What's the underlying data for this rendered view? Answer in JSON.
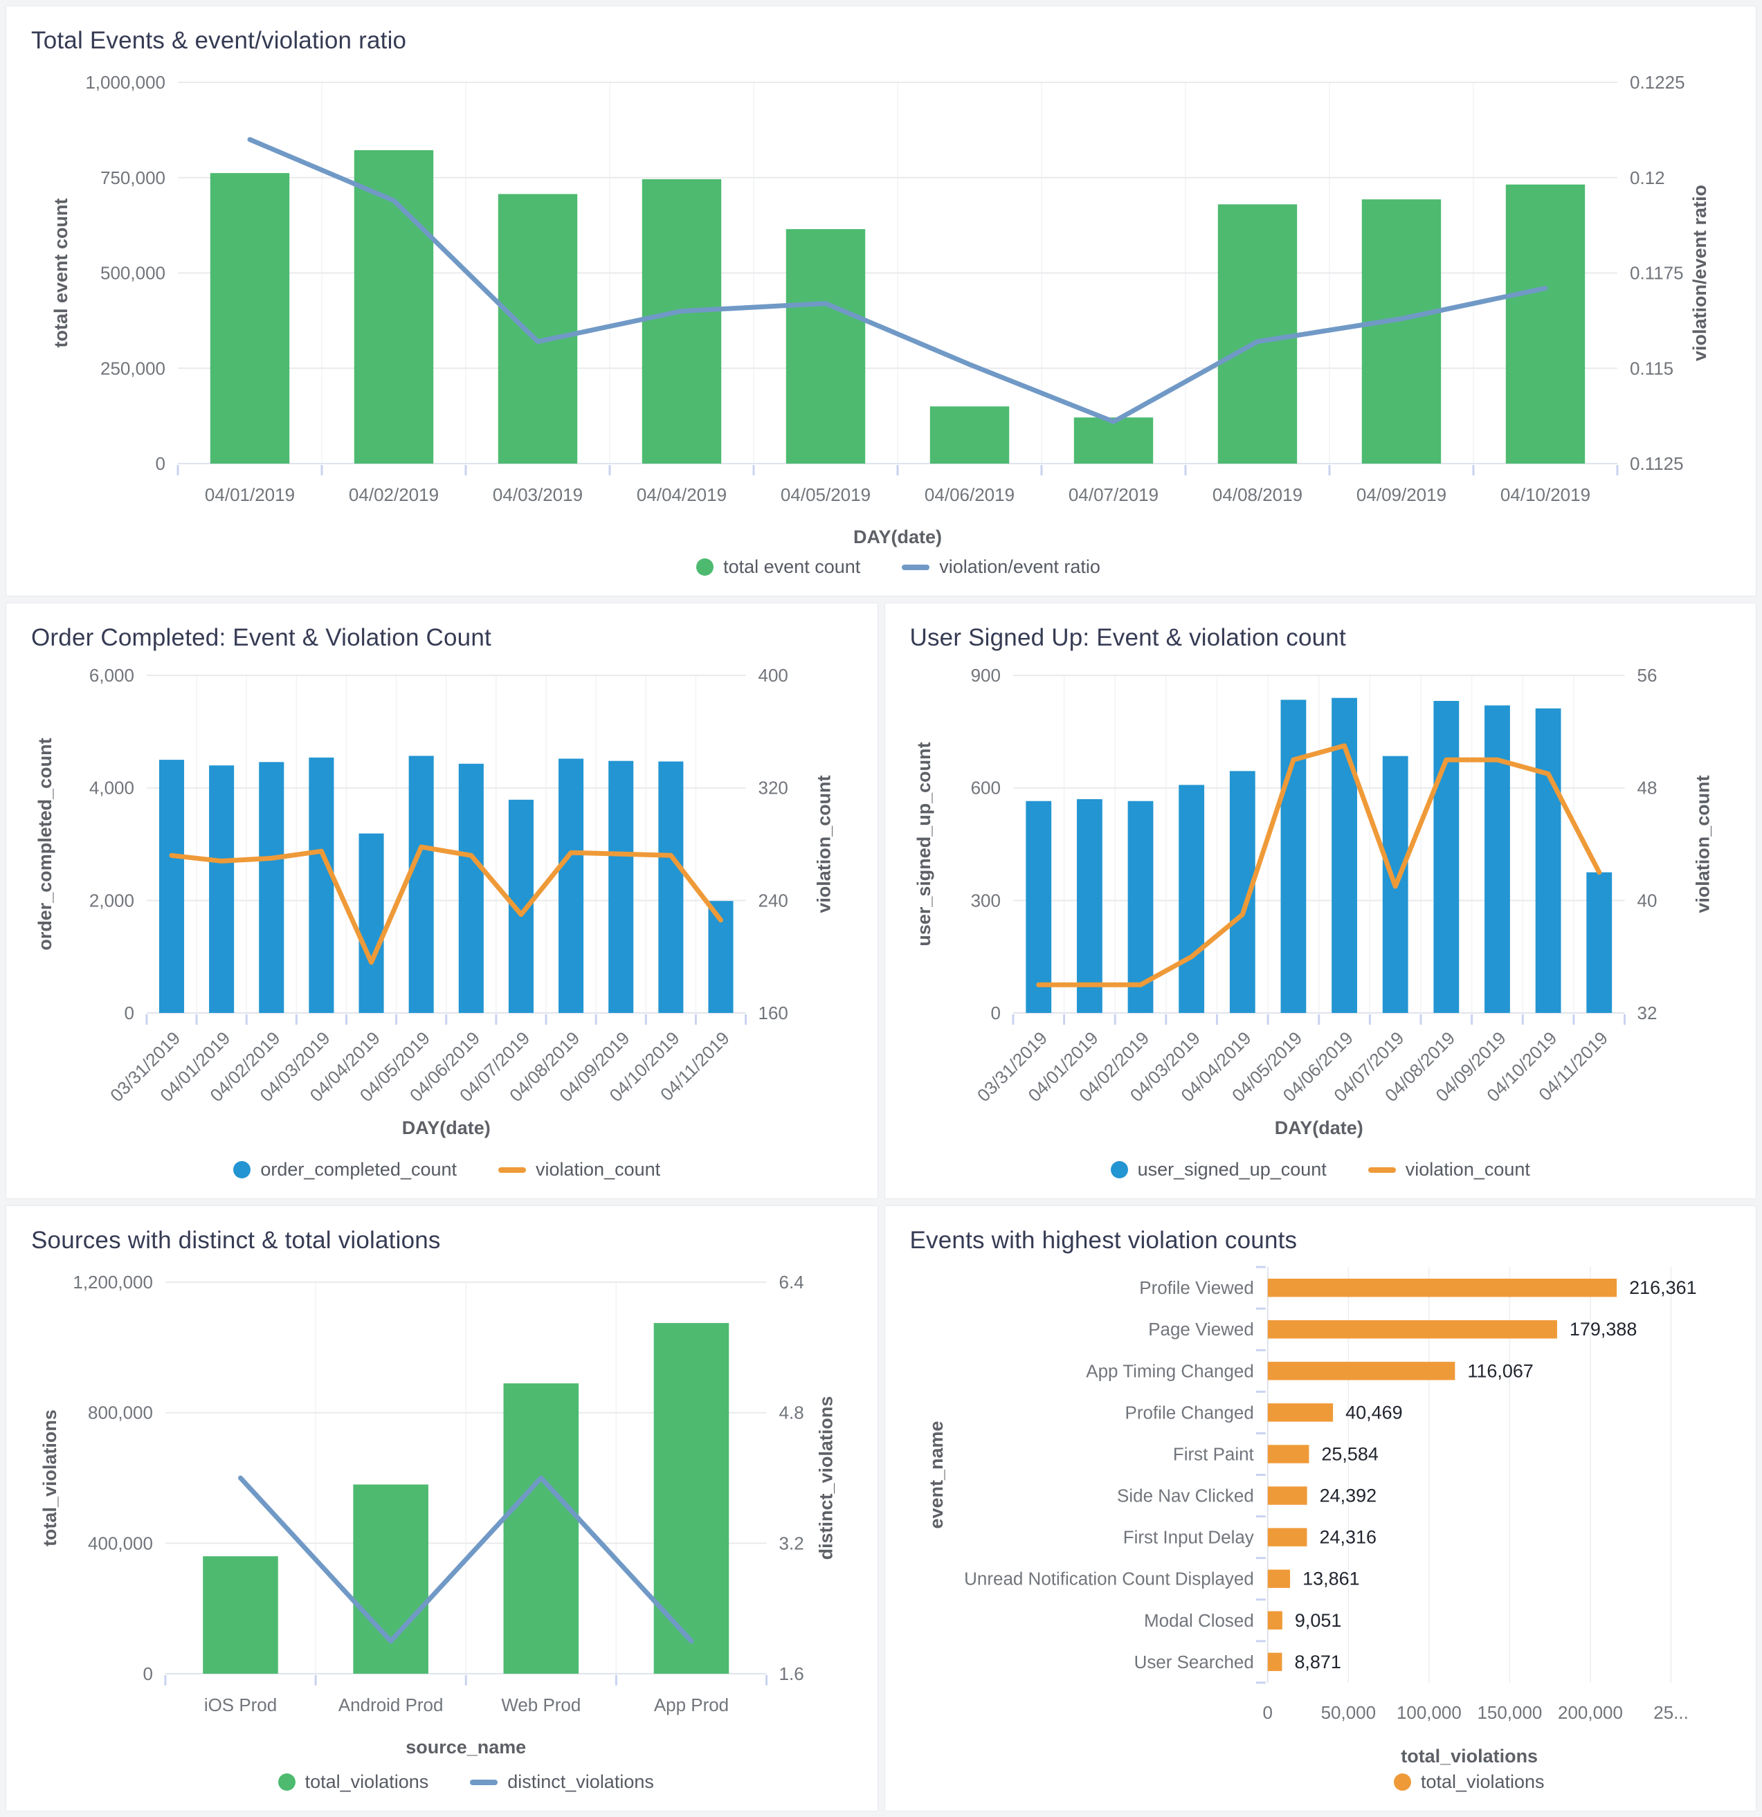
{
  "chart_data": [
    {
      "id": "total-events",
      "type": "combo",
      "title": "Total Events & event/violation ratio",
      "categories": [
        "04/01/2019",
        "04/02/2019",
        "04/03/2019",
        "04/04/2019",
        "04/05/2019",
        "04/06/2019",
        "04/07/2019",
        "04/08/2019",
        "04/09/2019",
        "04/10/2019"
      ],
      "x_axis": {
        "label": "DAY(date)"
      },
      "left_axis": {
        "label": "total event count",
        "min": 0,
        "max": 1000000,
        "ticks": [
          "1,000,000",
          "750,000",
          "500,000",
          "250,000",
          "0"
        ]
      },
      "right_axis": {
        "label": "violation/event ratio",
        "min": 0.1125,
        "max": 0.1225,
        "ticks": [
          "0.1225",
          "0.12",
          "0.1175",
          "0.115",
          "0.1125"
        ]
      },
      "bar_series": {
        "name": "total event count",
        "color": "#4dba70",
        "values": [
          762000,
          822000,
          707000,
          746000,
          615000,
          150000,
          121000,
          680000,
          693000,
          732000
        ]
      },
      "line_series": {
        "name": "violation/event ratio",
        "color": "#7099c6",
        "values": [
          0.121,
          0.1194,
          0.1157,
          0.1165,
          0.1167,
          0.1151,
          0.1136,
          0.1157,
          0.1163,
          0.1171
        ]
      }
    },
    {
      "id": "order-completed",
      "type": "combo",
      "title": "Order Completed: Event & Violation Count",
      "categories": [
        "03/31/2019",
        "04/01/2019",
        "04/02/2019",
        "04/03/2019",
        "04/04/2019",
        "04/05/2019",
        "04/06/2019",
        "04/07/2019",
        "04/08/2019",
        "04/09/2019",
        "04/10/2019",
        "04/11/2019"
      ],
      "x_axis": {
        "label": "DAY(date)"
      },
      "left_axis": {
        "label": "order_completed_count",
        "min": 0,
        "max": 6000,
        "ticks": [
          "6,000",
          "4,000",
          "2,000",
          "0"
        ]
      },
      "right_axis": {
        "label": "violation_count",
        "min": 160,
        "max": 400,
        "ticks": [
          "400",
          "320",
          "240",
          "160"
        ]
      },
      "bar_series": {
        "name": "order_completed_count",
        "color": "#2395d2",
        "values": [
          4500,
          4400,
          4460,
          4540,
          3190,
          4570,
          4430,
          3790,
          4520,
          4480,
          4470,
          1990
        ]
      },
      "line_series": {
        "name": "violation_count",
        "color": "#ef9a38",
        "values": [
          272,
          268,
          270,
          275,
          196,
          278,
          272,
          230,
          274,
          273,
          272,
          226
        ]
      }
    },
    {
      "id": "user-signed-up",
      "type": "combo",
      "title": "User Signed Up: Event & violation count",
      "categories": [
        "03/31/2019",
        "04/01/2019",
        "04/02/2019",
        "04/03/2019",
        "04/04/2019",
        "04/05/2019",
        "04/06/2019",
        "04/07/2019",
        "04/08/2019",
        "04/09/2019",
        "04/10/2019",
        "04/11/2019"
      ],
      "x_axis": {
        "label": "DAY(date)"
      },
      "left_axis": {
        "label": "user_signed_up_count",
        "min": 0,
        "max": 900,
        "ticks": [
          "900",
          "600",
          "300",
          "0"
        ]
      },
      "right_axis": {
        "label": "violation_count",
        "min": 32,
        "max": 56,
        "ticks": [
          "56",
          "48",
          "40",
          "32"
        ]
      },
      "bar_series": {
        "name": "user_signed_up_count",
        "color": "#2395d2",
        "values": [
          565,
          570,
          565,
          608,
          645,
          835,
          840,
          685,
          832,
          820,
          812,
          375
        ]
      },
      "line_series": {
        "name": "violation_count",
        "color": "#ef9a38",
        "values": [
          34,
          34,
          34,
          36,
          39,
          50,
          51,
          41,
          50,
          50,
          49,
          42
        ]
      }
    },
    {
      "id": "sources",
      "type": "combo",
      "title": "Sources with distinct & total violations",
      "categories": [
        "iOS Prod",
        "Android Prod",
        "Web Prod",
        "App Prod"
      ],
      "x_axis": {
        "label": "source_name"
      },
      "left_axis": {
        "label": "total_violations",
        "min": 0,
        "max": 1200000,
        "ticks": [
          "1,200,000",
          "800,000",
          "400,000",
          "0"
        ]
      },
      "right_axis": {
        "label": "distinct_violations",
        "min": 1.6,
        "max": 6.4,
        "ticks": [
          "6.4",
          "4.8",
          "3.2",
          "1.6"
        ]
      },
      "bar_series": {
        "name": "total_violations",
        "color": "#4dba70",
        "values": [
          360000,
          580000,
          890000,
          1075000
        ]
      },
      "line_series": {
        "name": "distinct_violations",
        "color": "#7099c6",
        "values": [
          4,
          2,
          4,
          2
        ]
      }
    },
    {
      "id": "top-events",
      "type": "hbar",
      "title": "Events with highest violation counts",
      "categories": [
        "Profile Viewed",
        "Page Viewed",
        "App Timing Changed",
        "Profile Changed",
        "First Paint",
        "Side Nav Clicked",
        "First Input Delay",
        "Unread Notification Count Displayed",
        "Modal Closed",
        "User Searched"
      ],
      "y_axis": {
        "label": "event_name"
      },
      "x_axis": {
        "label": "total_violations",
        "min": 0,
        "max": 250000,
        "ticks": [
          "0",
          "50,000",
          "100,000",
          "150,000",
          "200,000",
          "25..."
        ],
        "tick_values": [
          0,
          50000,
          100000,
          150000,
          200000,
          250000
        ]
      },
      "bar_series": {
        "name": "total_violations",
        "color": "#ef9a38",
        "values": [
          216361,
          179388,
          116067,
          40469,
          25584,
          24392,
          24316,
          13861,
          9051,
          8871
        ],
        "value_labels": [
          "216,361",
          "179,388",
          "116,067",
          "40,469",
          "25,584",
          "24,392",
          "24,316",
          "13,861",
          "9,051",
          "8,871"
        ]
      }
    }
  ]
}
